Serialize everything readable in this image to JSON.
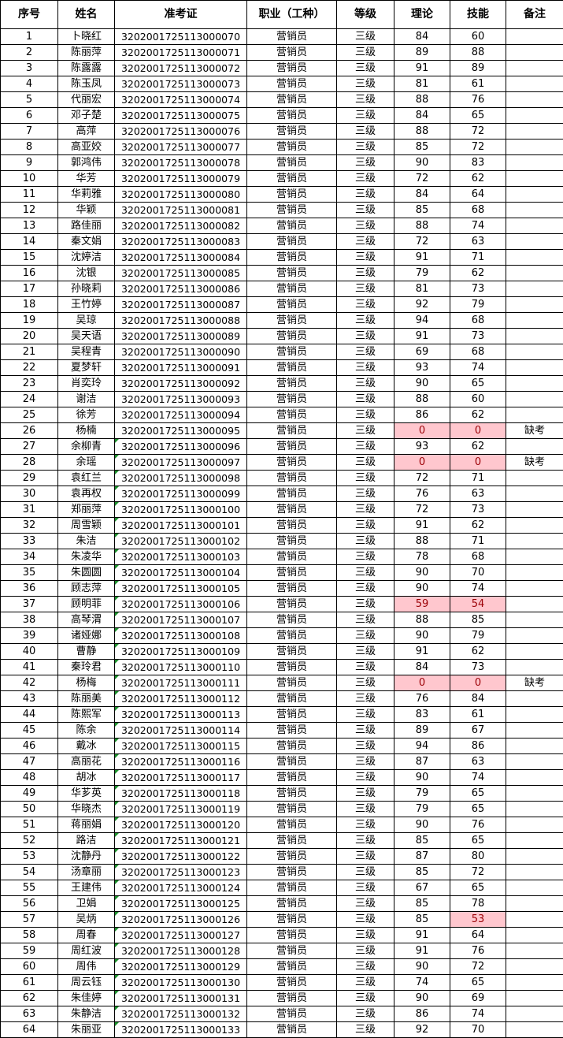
{
  "headers": [
    "序号",
    "姓名",
    "准考证",
    "职业（工种）",
    "等级",
    "理论",
    "技能",
    "备注"
  ],
  "pass_mark": 60,
  "colors": {
    "fail_bg": "#ffc7ce",
    "fail_text": "#9c0006",
    "flag_triangle": "#1a8f2a"
  },
  "rows": [
    [
      "1",
      "卜晓红",
      "3202001725113000070",
      "营销员",
      "三级",
      "84",
      "60",
      ""
    ],
    [
      "2",
      "陈丽萍",
      "3202001725113000071",
      "营销员",
      "三级",
      "89",
      "88",
      ""
    ],
    [
      "3",
      "陈露露",
      "3202001725113000072",
      "营销员",
      "三级",
      "91",
      "89",
      ""
    ],
    [
      "4",
      "陈玉凤",
      "3202001725113000073",
      "营销员",
      "三级",
      "81",
      "61",
      ""
    ],
    [
      "5",
      "代丽宏",
      "3202001725113000074",
      "营销员",
      "三级",
      "88",
      "76",
      ""
    ],
    [
      "6",
      "邓子楚",
      "3202001725113000075",
      "营销员",
      "三级",
      "84",
      "65",
      ""
    ],
    [
      "7",
      "高萍",
      "3202001725113000076",
      "营销员",
      "三级",
      "88",
      "72",
      ""
    ],
    [
      "8",
      "高亚姣",
      "3202001725113000077",
      "营销员",
      "三级",
      "85",
      "72",
      ""
    ],
    [
      "9",
      "郭鸿伟",
      "3202001725113000078",
      "营销员",
      "三级",
      "90",
      "83",
      ""
    ],
    [
      "10",
      "华芳",
      "3202001725113000079",
      "营销员",
      "三级",
      "72",
      "62",
      ""
    ],
    [
      "11",
      "华莉雅",
      "3202001725113000080",
      "营销员",
      "三级",
      "84",
      "64",
      ""
    ],
    [
      "12",
      "华颖",
      "3202001725113000081",
      "营销员",
      "三级",
      "85",
      "68",
      ""
    ],
    [
      "13",
      "路佳丽",
      "3202001725113000082",
      "营销员",
      "三级",
      "88",
      "74",
      ""
    ],
    [
      "14",
      "秦文娟",
      "3202001725113000083",
      "营销员",
      "三级",
      "72",
      "63",
      ""
    ],
    [
      "15",
      "沈婷洁",
      "3202001725113000084",
      "营销员",
      "三级",
      "91",
      "71",
      ""
    ],
    [
      "16",
      "沈银",
      "3202001725113000085",
      "营销员",
      "三级",
      "79",
      "62",
      ""
    ],
    [
      "17",
      "孙晓莉",
      "3202001725113000086",
      "营销员",
      "三级",
      "81",
      "73",
      ""
    ],
    [
      "18",
      "王竹婷",
      "3202001725113000087",
      "营销员",
      "三级",
      "92",
      "79",
      ""
    ],
    [
      "19",
      "吴琼",
      "3202001725113000088",
      "营销员",
      "三级",
      "94",
      "68",
      ""
    ],
    [
      "20",
      "吴天语",
      "3202001725113000089",
      "营销员",
      "三级",
      "91",
      "73",
      ""
    ],
    [
      "21",
      "吴程青",
      "3202001725113000090",
      "营销员",
      "三级",
      "69",
      "68",
      ""
    ],
    [
      "22",
      "夏梦轩",
      "3202001725113000091",
      "营销员",
      "三级",
      "93",
      "74",
      ""
    ],
    [
      "23",
      "肖奕玲",
      "3202001725113000092",
      "营销员",
      "三级",
      "90",
      "65",
      ""
    ],
    [
      "24",
      "谢洁",
      "3202001725113000093",
      "营销员",
      "三级",
      "88",
      "60",
      ""
    ],
    [
      "25",
      "徐芳",
      "3202001725113000094",
      "营销员",
      "三级",
      "86",
      "62",
      ""
    ],
    [
      "26",
      "杨楠",
      "3202001725113000095",
      "营销员",
      "三级",
      "0",
      "0",
      "缺考"
    ],
    [
      "27",
      "余柳青",
      "3202001725113000096",
      "营销员",
      "三级",
      "93",
      "62",
      ""
    ],
    [
      "28",
      "余瑶",
      "3202001725113000097",
      "营销员",
      "三级",
      "0",
      "0",
      "缺考"
    ],
    [
      "29",
      "袁红兰",
      "3202001725113000098",
      "营销员",
      "三级",
      "72",
      "71",
      ""
    ],
    [
      "30",
      "袁再权",
      "3202001725113000099",
      "营销员",
      "三级",
      "76",
      "63",
      ""
    ],
    [
      "31",
      "郑丽萍",
      "3202001725113000100",
      "营销员",
      "三级",
      "72",
      "73",
      ""
    ],
    [
      "32",
      "周雪颖",
      "3202001725113000101",
      "营销员",
      "三级",
      "91",
      "62",
      ""
    ],
    [
      "33",
      "朱洁",
      "3202001725113000102",
      "营销员",
      "三级",
      "88",
      "71",
      ""
    ],
    [
      "34",
      "朱凌华",
      "3202001725113000103",
      "营销员",
      "三级",
      "78",
      "68",
      ""
    ],
    [
      "35",
      "朱圆圆",
      "3202001725113000104",
      "营销员",
      "三级",
      "90",
      "70",
      ""
    ],
    [
      "36",
      "顾志萍",
      "3202001725113000105",
      "营销员",
      "三级",
      "90",
      "74",
      ""
    ],
    [
      "37",
      "顾明菲",
      "3202001725113000106",
      "营销员",
      "三级",
      "59",
      "54",
      ""
    ],
    [
      "38",
      "高琴渭",
      "3202001725113000107",
      "营销员",
      "三级",
      "88",
      "85",
      ""
    ],
    [
      "39",
      "诸娅娜",
      "3202001725113000108",
      "营销员",
      "三级",
      "90",
      "79",
      ""
    ],
    [
      "40",
      "曹静",
      "3202001725113000109",
      "营销员",
      "三级",
      "91",
      "62",
      ""
    ],
    [
      "41",
      "秦玲君",
      "3202001725113000110",
      "营销员",
      "三级",
      "84",
      "73",
      ""
    ],
    [
      "42",
      "杨梅",
      "3202001725113000111",
      "营销员",
      "三级",
      "0",
      "0",
      "缺考"
    ],
    [
      "43",
      "陈丽美",
      "3202001725113000112",
      "营销员",
      "三级",
      "76",
      "84",
      ""
    ],
    [
      "44",
      "陈熙军",
      "3202001725113000113",
      "营销员",
      "三级",
      "83",
      "61",
      ""
    ],
    [
      "45",
      "陈余",
      "3202001725113000114",
      "营销员",
      "三级",
      "89",
      "67",
      ""
    ],
    [
      "46",
      "戴冰",
      "3202001725113000115",
      "营销员",
      "三级",
      "94",
      "86",
      ""
    ],
    [
      "47",
      "高丽花",
      "3202001725113000116",
      "营销员",
      "三级",
      "87",
      "63",
      ""
    ],
    [
      "48",
      "胡冰",
      "3202001725113000117",
      "营销员",
      "三级",
      "90",
      "74",
      ""
    ],
    [
      "49",
      "华芗英",
      "3202001725113000118",
      "营销员",
      "三级",
      "79",
      "65",
      ""
    ],
    [
      "50",
      "华晓杰",
      "3202001725113000119",
      "营销员",
      "三级",
      "79",
      "65",
      ""
    ],
    [
      "51",
      "蒋丽娟",
      "3202001725113000120",
      "营销员",
      "三级",
      "90",
      "76",
      ""
    ],
    [
      "52",
      "路洁",
      "3202001725113000121",
      "营销员",
      "三级",
      "85",
      "65",
      ""
    ],
    [
      "53",
      "沈静丹",
      "3202001725113000122",
      "营销员",
      "三级",
      "87",
      "80",
      ""
    ],
    [
      "54",
      "汤章丽",
      "3202001725113000123",
      "营销员",
      "三级",
      "85",
      "72",
      ""
    ],
    [
      "55",
      "王建伟",
      "3202001725113000124",
      "营销员",
      "三级",
      "67",
      "65",
      ""
    ],
    [
      "56",
      "卫娟",
      "3202001725113000125",
      "营销员",
      "三级",
      "85",
      "78",
      ""
    ],
    [
      "57",
      "吴炳",
      "3202001725113000126",
      "营销员",
      "三级",
      "85",
      "53",
      ""
    ],
    [
      "58",
      "周春",
      "3202001725113000127",
      "营销员",
      "三级",
      "91",
      "64",
      ""
    ],
    [
      "59",
      "周红波",
      "3202001725113000128",
      "营销员",
      "三级",
      "91",
      "76",
      ""
    ],
    [
      "60",
      "周伟",
      "3202001725113000129",
      "营销员",
      "三级",
      "90",
      "72",
      ""
    ],
    [
      "61",
      "周云钰",
      "3202001725113000130",
      "营销员",
      "三级",
      "74",
      "65",
      ""
    ],
    [
      "62",
      "朱佳婷",
      "3202001725113000131",
      "营销员",
      "三级",
      "90",
      "69",
      ""
    ],
    [
      "63",
      "朱静洁",
      "3202001725113000132",
      "营销员",
      "三级",
      "86",
      "74",
      ""
    ],
    [
      "64",
      "朱丽亚",
      "3202001725113000133",
      "营销员",
      "三级",
      "92",
      "70",
      ""
    ]
  ]
}
